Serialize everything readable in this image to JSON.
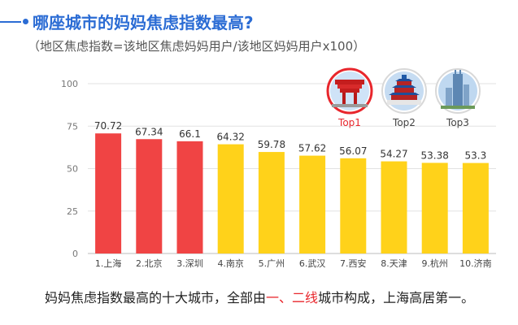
{
  "title": "哪座城市的妈妈焦虑指数最高?",
  "subtitle": "（地区焦虑指数=该地区焦虑妈妈用户/该地区妈妈用户x100）",
  "footer": {
    "part1": "妈妈焦虑指数最高的十大城市，全部由",
    "hl1": "一",
    "sep": "、",
    "hl2": "二线",
    "part2": "城市构成，上海高居第一。"
  },
  "top_badges": [
    {
      "label": "Top1",
      "icon": "china-pavilion-icon",
      "color": "#e8262c"
    },
    {
      "label": "Top2",
      "icon": "temple-of-heaven-icon",
      "color": "#444444"
    },
    {
      "label": "Top3",
      "icon": "skyscraper-icon",
      "color": "#444444"
    }
  ],
  "colors": {
    "top": "#f04444",
    "other": "#ffd21a",
    "accent": "#2b6cd4",
    "highlight": "#e8262c"
  },
  "chart_data": {
    "type": "bar",
    "categories": [
      "1.上海",
      "2.北京",
      "3.深圳",
      "4.南京",
      "5.广州",
      "6.武汉",
      "7.西安",
      "8.天津",
      "9.杭州",
      "10.济南"
    ],
    "values": [
      70.72,
      67.34,
      66.1,
      64.32,
      59.78,
      57.62,
      56.07,
      54.27,
      53.38,
      53.3
    ],
    "value_labels": [
      "70.72",
      "67.34",
      "66.1",
      "64.32",
      "59.78",
      "57.62",
      "56.07",
      "54.27",
      "53.38",
      "53.3"
    ],
    "highlighted_count": 3,
    "ylim": [
      0,
      100
    ],
    "yticks": [
      0,
      25,
      50,
      75,
      100
    ],
    "grid": true
  }
}
